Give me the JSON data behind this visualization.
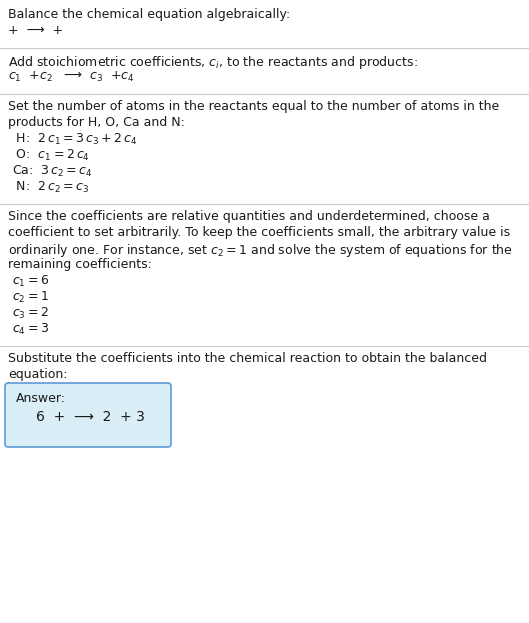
{
  "title": "Balance the chemical equation algebraically:",
  "line1": "+  ⟶  +",
  "section1_intro": "Add stoichiometric coefficients, $c_i$, to the reactants and products:",
  "section1_eq": "$c_1$  +$c_2$   ⟶  $c_3$  +$c_4$",
  "section2_intro1": "Set the number of atoms in the reactants equal to the number of atoms in the",
  "section2_intro2": "products for H, O, Ca and N:",
  "section2_lines": [
    " H:  $2\\,c_1 = 3\\,c_3 + 2\\,c_4$",
    " O:  $c_1 = 2\\,c_4$",
    "Ca:  $3\\,c_2 = c_4$",
    " N:  $2\\,c_2 = c_3$"
  ],
  "section3_intro1": "Since the coefficients are relative quantities and underdetermined, choose a",
  "section3_intro2": "coefficient to set arbitrarily. To keep the coefficients small, the arbitrary value is",
  "section3_intro3": "ordinarily one. For instance, set $c_2 = 1$ and solve the system of equations for the",
  "section3_intro4": "remaining coefficients:",
  "section3_lines": [
    "$c_1 = 6$",
    "$c_2 = 1$",
    "$c_3 = 2$",
    "$c_4 = 3$"
  ],
  "section4_intro1": "Substitute the coefficients into the chemical reaction to obtain the balanced",
  "section4_intro2": "equation:",
  "answer_label": "Answer:",
  "answer_eq": "6  +  ⟶  2  + 3",
  "bg_color": "#ffffff",
  "text_color": "#1a1a1a",
  "box_facecolor": "#daeef8",
  "box_edgecolor": "#5b9bd5",
  "sep_color": "#cccccc",
  "fs": 9.0,
  "fs_math": 9.0
}
